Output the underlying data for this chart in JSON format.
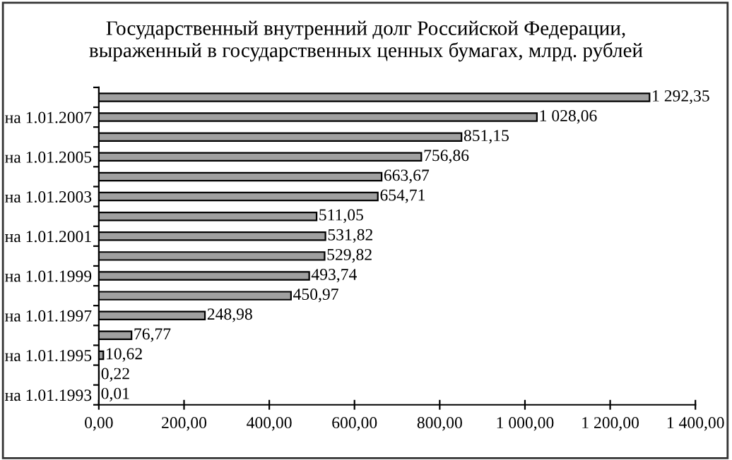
{
  "chart_data": {
    "type": "bar",
    "orientation": "horizontal",
    "title": "Государственный внутренний долг Российской Федерации,\nвыраженный в государственных ценных бумагах, млрд. рублей",
    "categories": [
      null,
      "на 1.01.2007",
      null,
      "на 1.01.2005",
      null,
      "на 1.01.2003",
      null,
      "на 1.01.2001",
      null,
      "на 1.01.1999",
      null,
      "на 1.01.1997",
      null,
      "на 1.01.1995",
      null,
      "на 1.01.1993"
    ],
    "values": [
      1292.35,
      1028.06,
      851.15,
      756.86,
      663.67,
      654.71,
      511.05,
      531.82,
      529.82,
      493.74,
      450.97,
      248.98,
      76.77,
      10.62,
      0.22,
      0.01
    ],
    "value_labels": [
      "1 292,35",
      "1 028,06",
      "851,15",
      "756,86",
      "663,67",
      "654,71",
      "511,05",
      "531,82",
      "529,82",
      "493,74",
      "450,97",
      "248,98",
      "76,77",
      "10,62",
      "0,22",
      "0,01"
    ],
    "color": "#a0a0a0",
    "xlim": [
      0,
      1400
    ],
    "xticks": [
      {
        "value": 0,
        "label": "0,00"
      },
      {
        "value": 200,
        "label": "200,00"
      },
      {
        "value": 400,
        "label": "400,00"
      },
      {
        "value": 600,
        "label": "600,00"
      },
      {
        "value": 800,
        "label": "800,00"
      },
      {
        "value": 1000,
        "label": "1 000,00"
      },
      {
        "value": 1200,
        "label": "1 200,00"
      },
      {
        "value": 1400,
        "label": "1 400,00"
      }
    ],
    "grid": false,
    "legend": false
  }
}
